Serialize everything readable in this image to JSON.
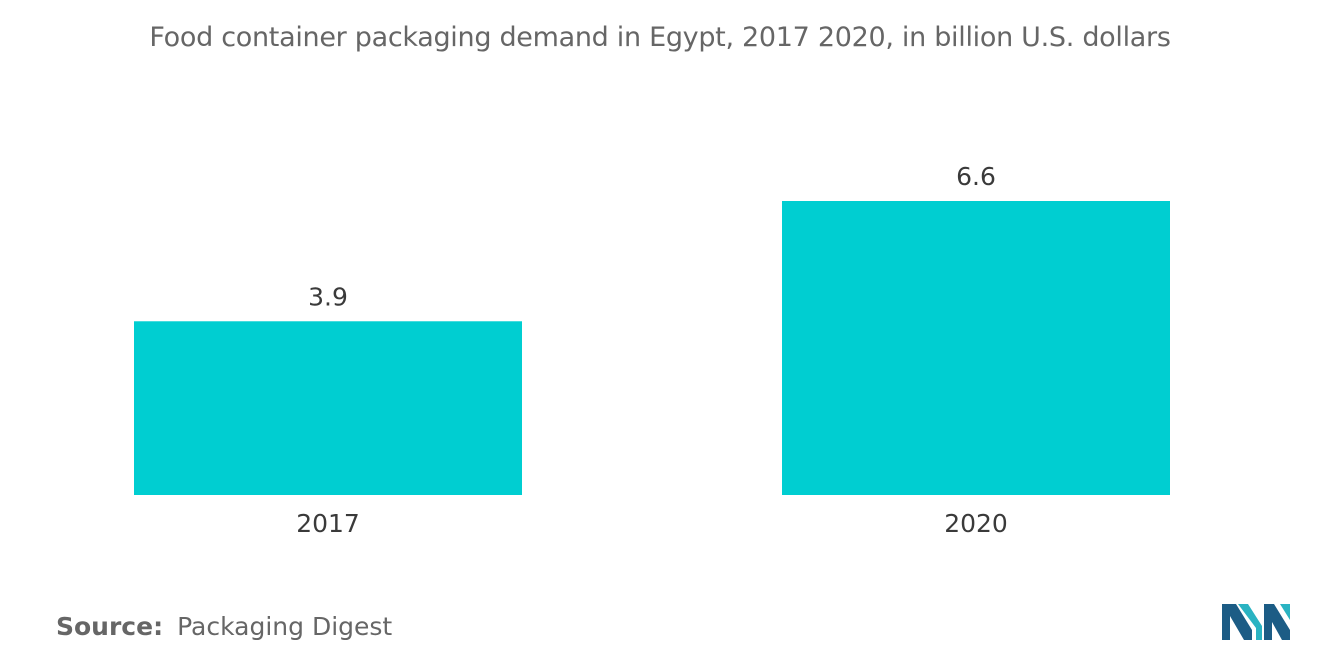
{
  "chart_data": {
    "type": "bar",
    "title": "Food container packaging demand in Egypt, 2017  2020, in billion U.S. dollars",
    "categories": [
      "2017",
      "2020"
    ],
    "values": [
      3.9,
      6.6
    ],
    "value_labels": [
      "3.9",
      "6.6"
    ],
    "xlabel": "",
    "ylabel": "",
    "ylim": [
      0,
      6.6
    ],
    "grid": false,
    "legend": "none",
    "bar_color": "#00CED1"
  },
  "source": {
    "label": "Source:",
    "text": "Packaging Digest"
  },
  "logo": {
    "icon": "mordor-intelligence-logo-icon",
    "colors": [
      "#1C5C85",
      "#2AB3C2"
    ]
  }
}
